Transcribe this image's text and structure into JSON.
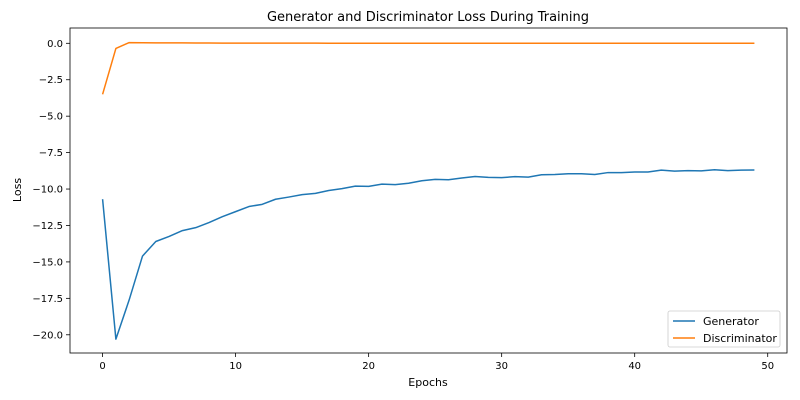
{
  "chart_data": {
    "type": "line",
    "title": "Generator and Discriminator Loss During Training",
    "xlabel": "Epochs",
    "ylabel": "Loss",
    "xlim": [
      -2.45,
      51.45
    ],
    "ylim": [
      -21.25,
      1.05
    ],
    "xticks": [
      0,
      10,
      20,
      30,
      40,
      50
    ],
    "yticks": [
      0.0,
      -2.5,
      -5.0,
      -7.5,
      -10.0,
      -12.5,
      -15.0,
      -17.5,
      -20.0
    ],
    "ytick_labels": [
      "0.0",
      "−2.5",
      "−5.0",
      "−7.5",
      "−10.0",
      "−12.5",
      "−15.0",
      "−17.5",
      "−20.0"
    ],
    "xtick_labels": [
      "0",
      "10",
      "20",
      "30",
      "40",
      "50"
    ],
    "grid": false,
    "legend_position": "lower-right",
    "x": [
      0,
      1,
      2,
      3,
      4,
      5,
      6,
      7,
      8,
      9,
      10,
      11,
      12,
      13,
      14,
      15,
      16,
      17,
      18,
      19,
      20,
      21,
      22,
      23,
      24,
      25,
      26,
      27,
      28,
      29,
      30,
      31,
      32,
      33,
      34,
      35,
      36,
      37,
      38,
      39,
      40,
      41,
      42,
      43,
      44,
      45,
      46,
      47,
      48,
      49
    ],
    "series": [
      {
        "name": "Generator",
        "color": "#1f77b4",
        "values": [
          -10.7,
          -20.3,
          -17.6,
          -14.6,
          -13.6,
          -13.25,
          -12.85,
          -12.65,
          -12.3,
          -11.9,
          -11.55,
          -11.2,
          -11.05,
          -10.7,
          -10.55,
          -10.38,
          -10.3,
          -10.1,
          -9.97,
          -9.8,
          -9.82,
          -9.66,
          -9.7,
          -9.6,
          -9.43,
          -9.34,
          -9.36,
          -9.24,
          -9.14,
          -9.2,
          -9.22,
          -9.15,
          -9.18,
          -9.02,
          -9.0,
          -8.95,
          -8.95,
          -9.0,
          -8.87,
          -8.87,
          -8.83,
          -8.83,
          -8.7,
          -8.77,
          -8.74,
          -8.75,
          -8.68,
          -8.74,
          -8.7,
          -8.69
        ]
      },
      {
        "name": "Discriminator",
        "color": "#ff7f0e",
        "values": [
          -3.5,
          -0.35,
          0.05,
          0.04,
          0.03,
          0.03,
          0.03,
          0.02,
          0.02,
          0.01,
          0.01,
          0.01,
          0.01,
          0.01,
          0.01,
          0.01,
          0.01,
          0.0,
          0.0,
          0.0,
          0.0,
          0.0,
          0.0,
          0.0,
          0.0,
          0.0,
          0.0,
          0.0,
          0.0,
          0.0,
          0.0,
          0.0,
          0.0,
          0.0,
          0.0,
          0.0,
          0.0,
          0.0,
          0.0,
          0.0,
          0.0,
          0.0,
          0.0,
          0.0,
          0.0,
          0.0,
          0.0,
          0.0,
          0.0,
          0.0
        ]
      }
    ]
  }
}
